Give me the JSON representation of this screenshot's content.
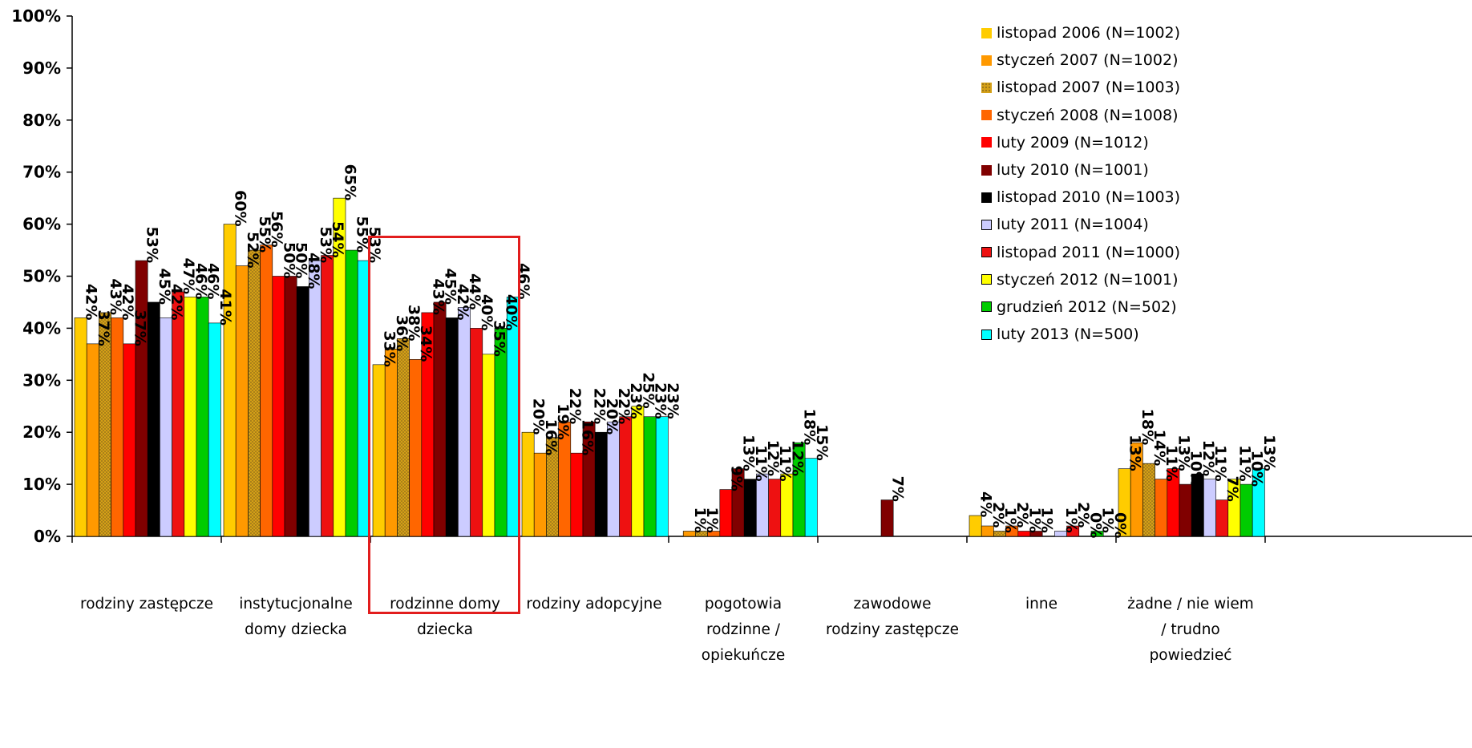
{
  "chart_data": {
    "type": "bar",
    "title": "",
    "xlabel": "",
    "ylabel": "",
    "ylim": [
      0,
      100
    ],
    "yticks": [
      "0%",
      "10%",
      "20%",
      "30%",
      "40%",
      "50%",
      "60%",
      "70%",
      "80%",
      "90%",
      "100%"
    ],
    "legend_position": "top-right",
    "highlighted_category": "rodzinne domy dziecka",
    "categories": [
      [
        "rodziny zastępcze"
      ],
      [
        "instytucjonalne",
        "domy dziecka"
      ],
      [
        "rodzinne domy",
        "dziecka"
      ],
      [
        "rodziny adopcyjne"
      ],
      [
        "pogotowia",
        "rodzinne /",
        "opiekuńcze"
      ],
      [
        "zawodowe",
        "rodziny zastępcze"
      ],
      [
        "inne"
      ],
      [
        "żadne / nie wiem",
        "/ trudno",
        "powiedzieć"
      ]
    ],
    "series": [
      {
        "name": "listopad 2006 (N=1002)",
        "color": "#ffcc00",
        "pattern": "solid",
        "values": [
          42,
          60,
          33,
          20,
          0,
          0,
          4,
          13
        ]
      },
      {
        "name": "styczeń 2007 (N=1002)",
        "color": "#ff9900",
        "pattern": "solid",
        "values": [
          37,
          52,
          36,
          16,
          1,
          0,
          2,
          18
        ]
      },
      {
        "name": "listopad 2007 (N=1003)",
        "color": "#cc9933",
        "pattern": "dotted",
        "values": [
          43,
          55,
          38,
          19,
          1,
          0,
          1,
          14
        ]
      },
      {
        "name": "styczeń 2008 (N=1008)",
        "color": "#ff6600",
        "pattern": "solid",
        "values": [
          42,
          56,
          34,
          22,
          1,
          0,
          2,
          11
        ]
      },
      {
        "name": "luty 2009 (N=1012)",
        "color": "#ff0000",
        "pattern": "solid",
        "values": [
          37,
          50,
          43,
          16,
          9,
          0,
          1,
          13
        ]
      },
      {
        "name": "luty 2010 (N=1001)",
        "color": "#800000",
        "pattern": "solid",
        "values": [
          53,
          50,
          45,
          22,
          13,
          7,
          1,
          10
        ]
      },
      {
        "name": "listopad 2010 (N=1003)",
        "color": "#000000",
        "pattern": "solid",
        "values": [
          45,
          48,
          42,
          20,
          11,
          0,
          0,
          12
        ]
      },
      {
        "name": "luty 2011 (N=1004)",
        "color": "#ccccff",
        "pattern": "solid",
        "values": [
          42,
          53,
          44,
          22,
          12,
          0,
          1,
          11
        ]
      },
      {
        "name": "listopad 2011 (N=1000)",
        "color": "#ee1111",
        "pattern": "solid",
        "values": [
          47,
          54,
          40,
          23,
          11,
          0,
          2,
          7
        ]
      },
      {
        "name": "styczeń 2012 (N=1001)",
        "color": "#ffff00",
        "pattern": "solid",
        "values": [
          46,
          65,
          35,
          25,
          12,
          0,
          0,
          11
        ]
      },
      {
        "name": "grudzień 2012 (N=502)",
        "color": "#00cc00",
        "pattern": "solid",
        "values": [
          46,
          55,
          40,
          23,
          18,
          0,
          1,
          10
        ]
      },
      {
        "name": "luty 2013 (N=500)",
        "color": "#00ffff",
        "pattern": "solid",
        "values": [
          41,
          53,
          46,
          23,
          15,
          0,
          0,
          13
        ]
      }
    ],
    "data_labels": [
      [
        "42%",
        "37%",
        "43%",
        "42%",
        "37%",
        "53%",
        "45%",
        "42%",
        "47%",
        "46%",
        "46%",
        "41%"
      ],
      [
        "60%",
        "52%",
        "55%",
        "56%",
        "50%",
        "50%",
        "48%",
        "53%",
        "54%",
        "65%",
        "55%",
        "53%"
      ],
      [
        "33%",
        "36%",
        "38%",
        "34%",
        "43%",
        "45%",
        "42%",
        "44%",
        "40%",
        "35%",
        "40%",
        "46%"
      ],
      [
        "20%",
        "16%",
        "19%",
        "22%",
        "16%",
        "22%",
        "20%",
        "22%",
        "23%",
        "25%",
        "23%",
        "23%"
      ],
      [
        "",
        "1%",
        "1%",
        "",
        "9%",
        "13%",
        "11%",
        "12%",
        "11%",
        "12%",
        "18%",
        "15%"
      ],
      [
        "",
        "",
        "",
        "",
        "",
        "7%",
        "",
        "",
        "",
        "",
        "",
        ""
      ],
      [
        "4%",
        "2%",
        "1%",
        "2%",
        "1%",
        "1%",
        "",
        "1%",
        "2%",
        "0%",
        "1%",
        "0%"
      ],
      [
        "13%",
        "18%",
        "14%",
        "11%",
        "13%",
        "10%",
        "12%",
        "11%",
        "7%",
        "11%",
        "10%",
        "13%"
      ]
    ]
  }
}
